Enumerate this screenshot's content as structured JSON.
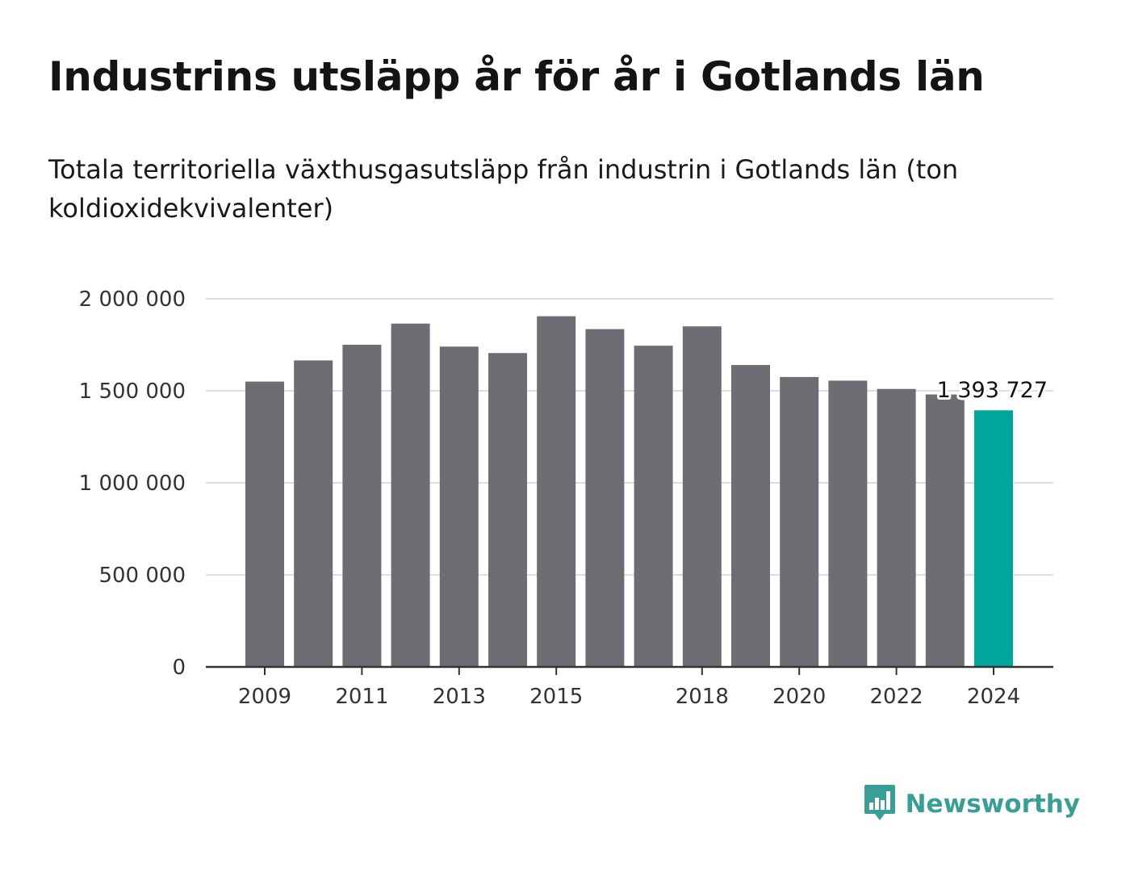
{
  "title": "Industrins utsläpp år för år i Gotlands län",
  "subtitle": "Totala territoriella växthusgasutsläpp från industrin i Gotlands län (ton koldioxidekvivalenter)",
  "brand": {
    "name": "Newsworthy",
    "icon": "bar-chart-speech-bubble-icon",
    "color": "#3a9e96"
  },
  "colors": {
    "bar": "#6e6d73",
    "highlight": "#00a699",
    "grid": "#dddddd",
    "axis": "#333333"
  },
  "chart_data": {
    "type": "bar",
    "categories": [
      "2009",
      "2010",
      "2011",
      "2012",
      "2013",
      "2014",
      "2015",
      "2016",
      "2017",
      "2018",
      "2019",
      "2020",
      "2021",
      "2022",
      "2023",
      "2024"
    ],
    "values": [
      1550000,
      1665000,
      1750000,
      1865000,
      1740000,
      1705000,
      1905000,
      1835000,
      1745000,
      1850000,
      1640000,
      1575000,
      1555000,
      1510000,
      1480000,
      1393727
    ],
    "highlight_index": 15,
    "data_label": "1 393 727",
    "x_tick_labels": [
      "2009",
      "2011",
      "2013",
      "2015",
      "2018",
      "2020",
      "2022",
      "2024"
    ],
    "y_ticks": [
      0,
      500000,
      1000000,
      1500000,
      2000000
    ],
    "y_tick_labels": [
      "0",
      "500 000",
      "1 000 000",
      "1 500 000",
      "2 000 000"
    ],
    "ylim": [
      0,
      2000000
    ],
    "grid": true,
    "xlabel": "",
    "ylabel": ""
  }
}
